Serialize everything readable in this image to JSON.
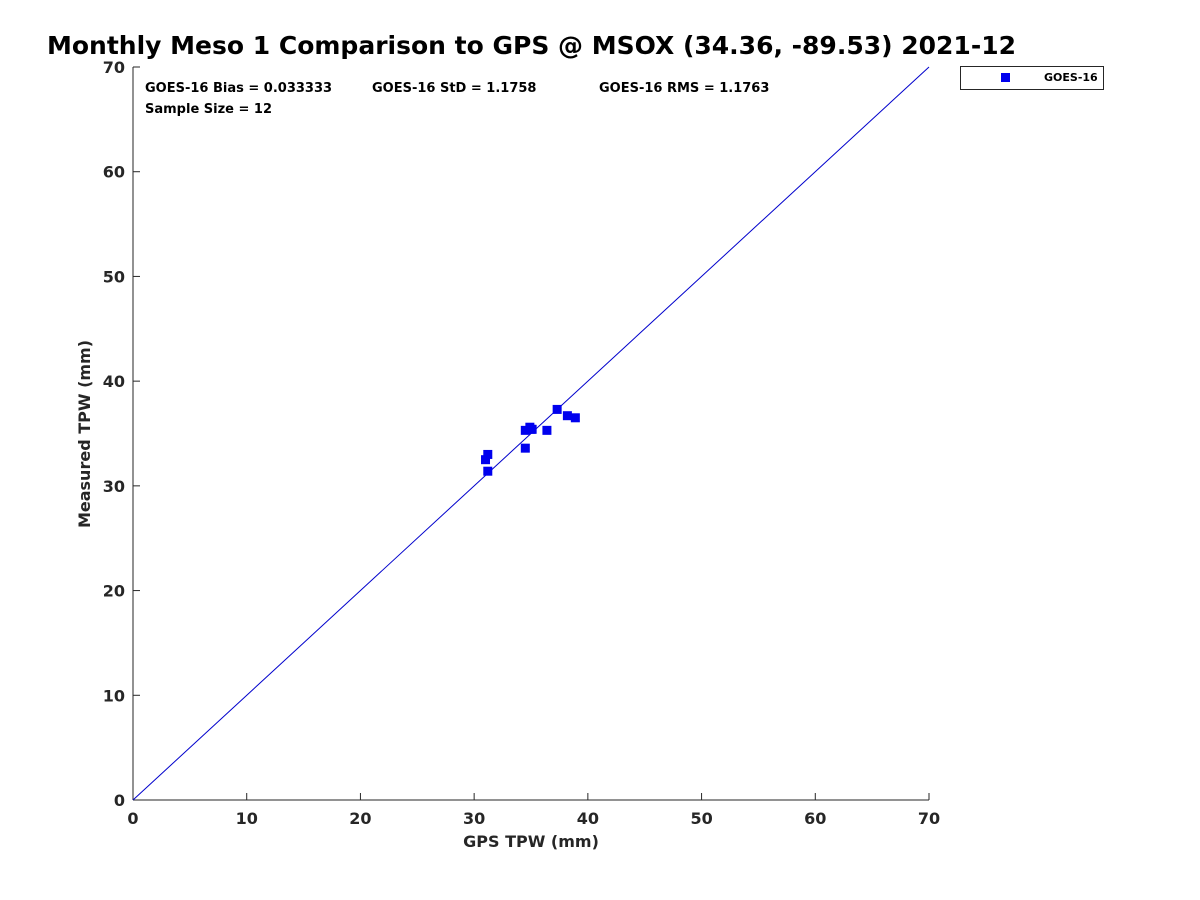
{
  "chart_data": {
    "type": "scatter",
    "title": "Monthly Meso 1 Comparison to GPS @ MSOX (34.36, -89.53) 2021-12",
    "xlabel": "GPS TPW (mm)",
    "ylabel": "Measured TPW (mm)",
    "xlim": [
      0,
      70
    ],
    "ylim": [
      0,
      70
    ],
    "xticks": [
      0,
      10,
      20,
      30,
      40,
      50,
      60,
      70
    ],
    "yticks": [
      0,
      10,
      20,
      30,
      40,
      50,
      60,
      70
    ],
    "grid": false,
    "legend_position": "outside-top-right",
    "reference_line": {
      "from": [
        0,
        0
      ],
      "to": [
        70,
        70
      ],
      "color": "#0000cc"
    },
    "stats": {
      "bias": "GOES-16 Bias = 0.033333",
      "std": "GOES-16 StD = 1.1758",
      "rms": "GOES-16 RMS = 1.1763",
      "sample_size": "Sample Size = 12"
    },
    "series": [
      {
        "name": "GOES-16",
        "color": "#0000ee",
        "marker": "square",
        "points": [
          [
            31.0,
            32.5
          ],
          [
            31.2,
            33.0
          ],
          [
            31.2,
            31.4
          ],
          [
            34.5,
            33.6
          ],
          [
            34.5,
            35.3
          ],
          [
            34.9,
            35.6
          ],
          [
            35.1,
            35.4
          ],
          [
            36.4,
            35.3
          ],
          [
            37.3,
            37.3
          ],
          [
            38.2,
            36.7
          ],
          [
            38.9,
            36.5
          ],
          [
            35.0,
            35.4
          ]
        ]
      }
    ]
  }
}
